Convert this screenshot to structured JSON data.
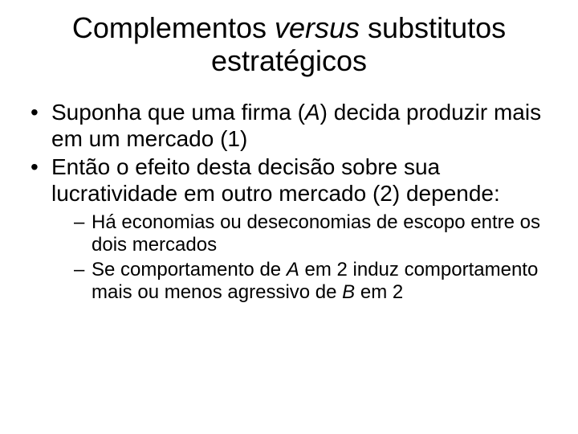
{
  "title": {
    "pre": "Complementos ",
    "italic": "versus",
    "post": " substitutos estratégicos"
  },
  "bullets": [
    {
      "pre": "Suponha que uma firma (",
      "i1": "A",
      "post": ") decida produzir mais em um mercado (1)"
    },
    {
      "text": "Então o efeito desta decisão sobre sua lucratividade em outro mercado (2) depende:",
      "sub": [
        {
          "text": "Há economias ou deseconomias de escopo entre os dois mercados"
        },
        {
          "p1": "Se comportamento de ",
          "i1": "A",
          "p2": " em 2 induz comportamento mais ou menos agressivo de ",
          "i2": "B",
          "p3": " em 2"
        }
      ]
    }
  ],
  "style": {
    "background": "#ffffff",
    "text_color": "#000000",
    "title_fontsize": 36,
    "body_fontsize": 28,
    "sub_fontsize": 24
  }
}
